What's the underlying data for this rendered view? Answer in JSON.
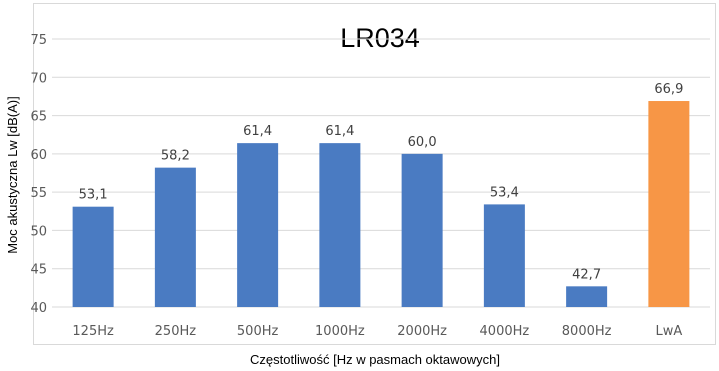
{
  "chart_data": {
    "type": "bar",
    "title": "LR034",
    "xlabel": "Częstotliwość [Hz w pasmach oktawowych]",
    "ylabel": "Moc akustyczna Lw [dB(A)]",
    "categories": [
      "125Hz",
      "250Hz",
      "500Hz",
      "1000Hz",
      "2000Hz",
      "4000Hz",
      "8000Hz",
      "LwA"
    ],
    "values": [
      53.1,
      58.2,
      61.4,
      61.4,
      60.0,
      53.4,
      42.7,
      66.9
    ],
    "value_labels": [
      "53,1",
      "58,2",
      "61,4",
      "61,4",
      "60,0",
      "53,4",
      "42,7",
      "66,9"
    ],
    "bar_colors": [
      "#4a7bc2",
      "#4a7bc2",
      "#4a7bc2",
      "#4a7bc2",
      "#4a7bc2",
      "#4a7bc2",
      "#4a7bc2",
      "#f79646"
    ],
    "ylim": [
      40,
      75
    ],
    "yticks": [
      40,
      45,
      50,
      55,
      60,
      65,
      70,
      75
    ],
    "grid": true,
    "gridline_color": "#d9d9d9"
  }
}
